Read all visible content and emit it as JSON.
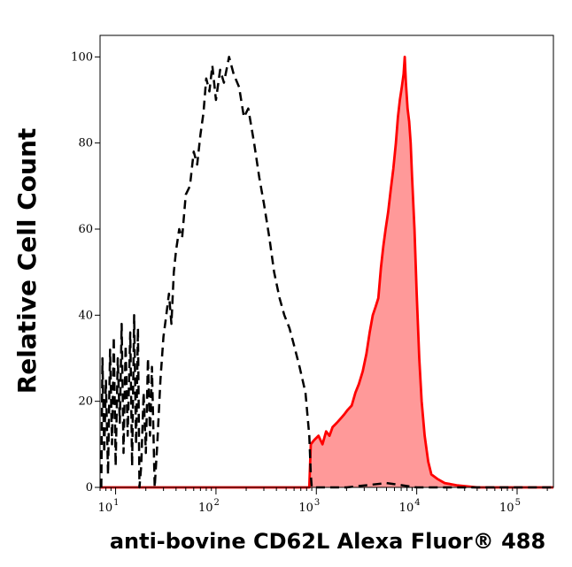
{
  "chart_data": {
    "type": "area",
    "xlabel": "anti-bovine CD62L Alexa Fluor® 488",
    "ylabel": "Relative Cell Count",
    "x_scale": "log",
    "xlim": [
      7,
      230000
    ],
    "ylim": [
      0,
      105
    ],
    "grid": false,
    "legend": "none",
    "x_ticks": [
      {
        "value": 10,
        "base": "10",
        "exp": "1"
      },
      {
        "value": 100,
        "base": "10",
        "exp": "2"
      },
      {
        "value": 1000,
        "base": "10",
        "exp": "3"
      },
      {
        "value": 10000,
        "base": "10",
        "exp": "4"
      },
      {
        "value": 100000,
        "base": "10",
        "exp": "5"
      }
    ],
    "y_ticks": [
      0,
      20,
      40,
      60,
      80,
      100
    ],
    "series": [
      {
        "style": "dashed",
        "color": "#000000",
        "fill": "none",
        "points": [
          [
            7.2,
            0
          ],
          [
            7.4,
            30
          ],
          [
            7.7,
            8
          ],
          [
            8.0,
            25
          ],
          [
            8.4,
            3
          ],
          [
            8.8,
            32
          ],
          [
            9.2,
            10
          ],
          [
            9.6,
            35
          ],
          [
            10,
            5
          ],
          [
            10.5,
            30
          ],
          [
            11,
            15
          ],
          [
            11.5,
            38
          ],
          [
            12,
            8
          ],
          [
            12.6,
            33
          ],
          [
            13.2,
            12
          ],
          [
            14,
            36
          ],
          [
            14.6,
            5
          ],
          [
            15.3,
            40
          ],
          [
            16,
            10
          ],
          [
            16.7,
            37
          ],
          [
            17.3,
            0
          ],
          [
            18,
            5
          ],
          [
            19,
            22
          ],
          [
            20,
            8
          ],
          [
            21,
            30
          ],
          [
            22,
            12
          ],
          [
            23,
            28
          ],
          [
            24.5,
            0
          ],
          [
            26,
            10
          ],
          [
            28,
            25
          ],
          [
            30,
            35
          ],
          [
            32,
            40
          ],
          [
            34,
            45
          ],
          [
            36,
            38
          ],
          [
            38,
            50
          ],
          [
            40,
            55
          ],
          [
            43,
            60
          ],
          [
            46,
            58
          ],
          [
            50,
            68
          ],
          [
            55,
            70
          ],
          [
            60,
            78
          ],
          [
            65,
            75
          ],
          [
            70,
            82
          ],
          [
            75,
            87
          ],
          [
            80,
            95
          ],
          [
            86,
            92
          ],
          [
            92,
            98
          ],
          [
            100,
            90
          ],
          [
            110,
            97
          ],
          [
            120,
            94
          ],
          [
            135,
            100
          ],
          [
            150,
            96
          ],
          [
            170,
            93
          ],
          [
            190,
            86
          ],
          [
            210,
            88
          ],
          [
            240,
            80
          ],
          [
            270,
            72
          ],
          [
            300,
            66
          ],
          [
            340,
            58
          ],
          [
            380,
            50
          ],
          [
            430,
            44
          ],
          [
            480,
            40
          ],
          [
            540,
            37
          ],
          [
            600,
            33
          ],
          [
            680,
            28
          ],
          [
            780,
            22
          ],
          [
            850,
            12
          ],
          [
            880,
            3
          ],
          [
            900,
            0
          ],
          [
            2000,
            0
          ],
          [
            5000,
            1
          ],
          [
            10000,
            0
          ],
          [
            230000,
            0
          ]
        ]
      },
      {
        "style": "solid",
        "color": "#ff0000",
        "fill": "#ff9999",
        "points": [
          [
            7,
            0
          ],
          [
            850,
            0
          ],
          [
            880,
            10
          ],
          [
            950,
            11
          ],
          [
            1050,
            12
          ],
          [
            1150,
            10
          ],
          [
            1250,
            13
          ],
          [
            1350,
            12
          ],
          [
            1450,
            14
          ],
          [
            1600,
            15
          ],
          [
            1750,
            16
          ],
          [
            1900,
            17
          ],
          [
            2050,
            18
          ],
          [
            2250,
            19
          ],
          [
            2450,
            22
          ],
          [
            2650,
            24
          ],
          [
            2900,
            27
          ],
          [
            3150,
            31
          ],
          [
            3400,
            36
          ],
          [
            3650,
            40
          ],
          [
            3900,
            42
          ],
          [
            4150,
            44
          ],
          [
            4400,
            51
          ],
          [
            4650,
            56
          ],
          [
            4900,
            60
          ],
          [
            5200,
            64
          ],
          [
            5500,
            69
          ],
          [
            5850,
            74
          ],
          [
            6200,
            80
          ],
          [
            6500,
            86
          ],
          [
            6800,
            90
          ],
          [
            7100,
            93
          ],
          [
            7400,
            96
          ],
          [
            7600,
            100
          ],
          [
            7800,
            94
          ],
          [
            8100,
            88
          ],
          [
            8400,
            85
          ],
          [
            8700,
            80
          ],
          [
            9000,
            72
          ],
          [
            9500,
            60
          ],
          [
            10000,
            45
          ],
          [
            10600,
            30
          ],
          [
            11200,
            20
          ],
          [
            12000,
            12
          ],
          [
            13000,
            6
          ],
          [
            14000,
            3
          ],
          [
            16000,
            2
          ],
          [
            19000,
            1
          ],
          [
            25000,
            0.5
          ],
          [
            40000,
            0
          ],
          [
            230000,
            0
          ]
        ]
      }
    ]
  }
}
